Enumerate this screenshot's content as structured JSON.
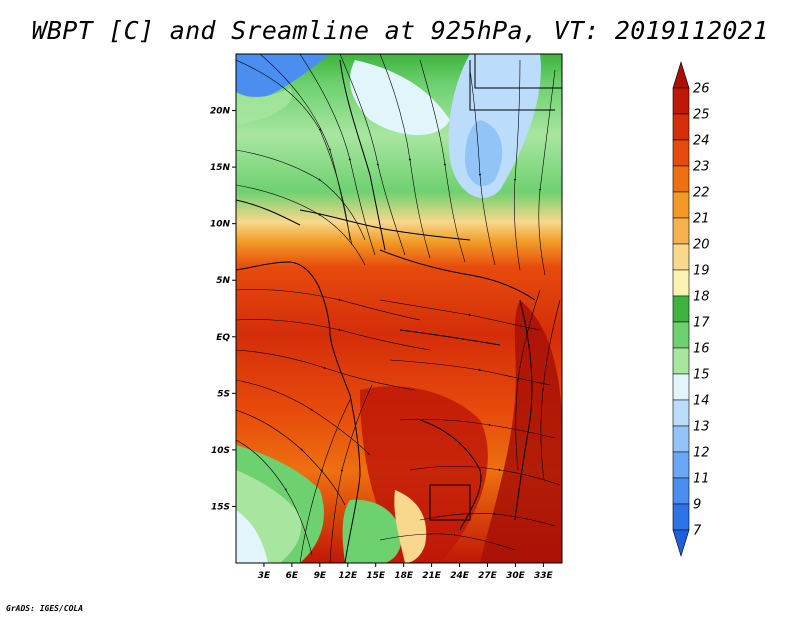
{
  "title": "WBPT [C] and Sreamline at 925hPa, VT: 2019112021",
  "footer": "GrADS: IGES/COLA",
  "map": {
    "lon_range": [
      0,
      35
    ],
    "lat_range": [
      -20,
      25
    ],
    "x_ticks": [
      {
        "value": 3,
        "label": "3E"
      },
      {
        "value": 6,
        "label": "6E"
      },
      {
        "value": 9,
        "label": "9E"
      },
      {
        "value": 12,
        "label": "12E"
      },
      {
        "value": 15,
        "label": "15E"
      },
      {
        "value": 18,
        "label": "18E"
      },
      {
        "value": 21,
        "label": "21E"
      },
      {
        "value": 24,
        "label": "24E"
      },
      {
        "value": 27,
        "label": "27E"
      },
      {
        "value": 30,
        "label": "30E"
      },
      {
        "value": 33,
        "label": "33E"
      }
    ],
    "y_ticks": [
      {
        "value": 20,
        "label": "20N"
      },
      {
        "value": 15,
        "label": "15N"
      },
      {
        "value": 10,
        "label": "10N"
      },
      {
        "value": 5,
        "label": "5N"
      },
      {
        "value": 0,
        "label": "EQ"
      },
      {
        "value": -5,
        "label": "5S"
      },
      {
        "value": -10,
        "label": "10S"
      },
      {
        "value": -15,
        "label": "15S"
      }
    ]
  },
  "colorbar": {
    "levels": [
      "7",
      "9",
      "11",
      "12",
      "13",
      "14",
      "15",
      "16",
      "17",
      "18",
      "19",
      "20",
      "21",
      "22",
      "23",
      "24",
      "25",
      "26"
    ],
    "colors": [
      "#1e5fdc",
      "#2f74e6",
      "#4a8ef0",
      "#6aa8f5",
      "#92c4f8",
      "#bcdcfb",
      "#e2f5fb",
      "#a8e6a0",
      "#6ed170",
      "#3eb43e",
      "#fbf3b4",
      "#f8d88c",
      "#f5b350",
      "#f29a25",
      "#ee7010",
      "#e74a0c",
      "#d42e0a",
      "#c01808",
      "#a80f06"
    ]
  }
}
